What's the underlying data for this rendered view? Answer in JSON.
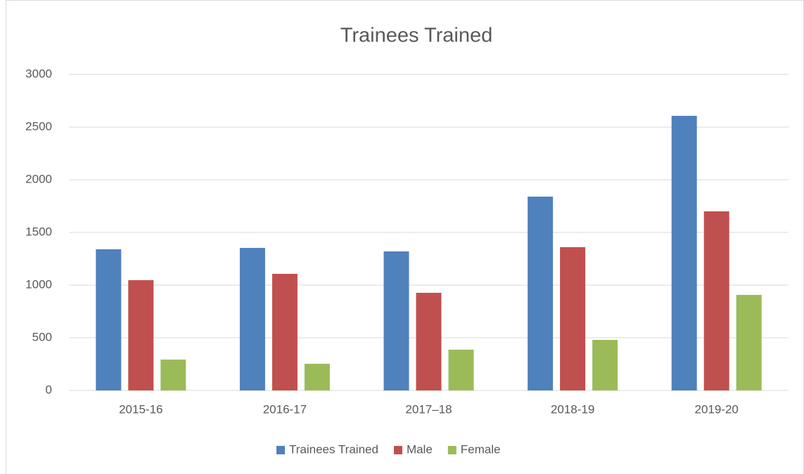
{
  "chart_data": {
    "type": "bar",
    "title": "Trainees Trained",
    "categories": [
      "2015-16",
      "2016-17",
      "2017–18",
      "2018-19",
      "2019-20"
    ],
    "series": [
      {
        "name": "Trainees Trained",
        "color": "#4f81bd",
        "values": [
          1340,
          1353,
          1320,
          1840,
          2607
        ]
      },
      {
        "name": "Male",
        "color": "#c0504d",
        "values": [
          1047,
          1107,
          927,
          1360,
          1700
        ]
      },
      {
        "name": "Female",
        "color": "#9bbb59",
        "values": [
          293,
          253,
          387,
          480,
          907
        ]
      }
    ],
    "ylim": [
      0,
      3000
    ],
    "yticks": [
      0,
      500,
      1000,
      1500,
      2000,
      2500,
      3000
    ],
    "grid": true,
    "legend": "bottom"
  }
}
